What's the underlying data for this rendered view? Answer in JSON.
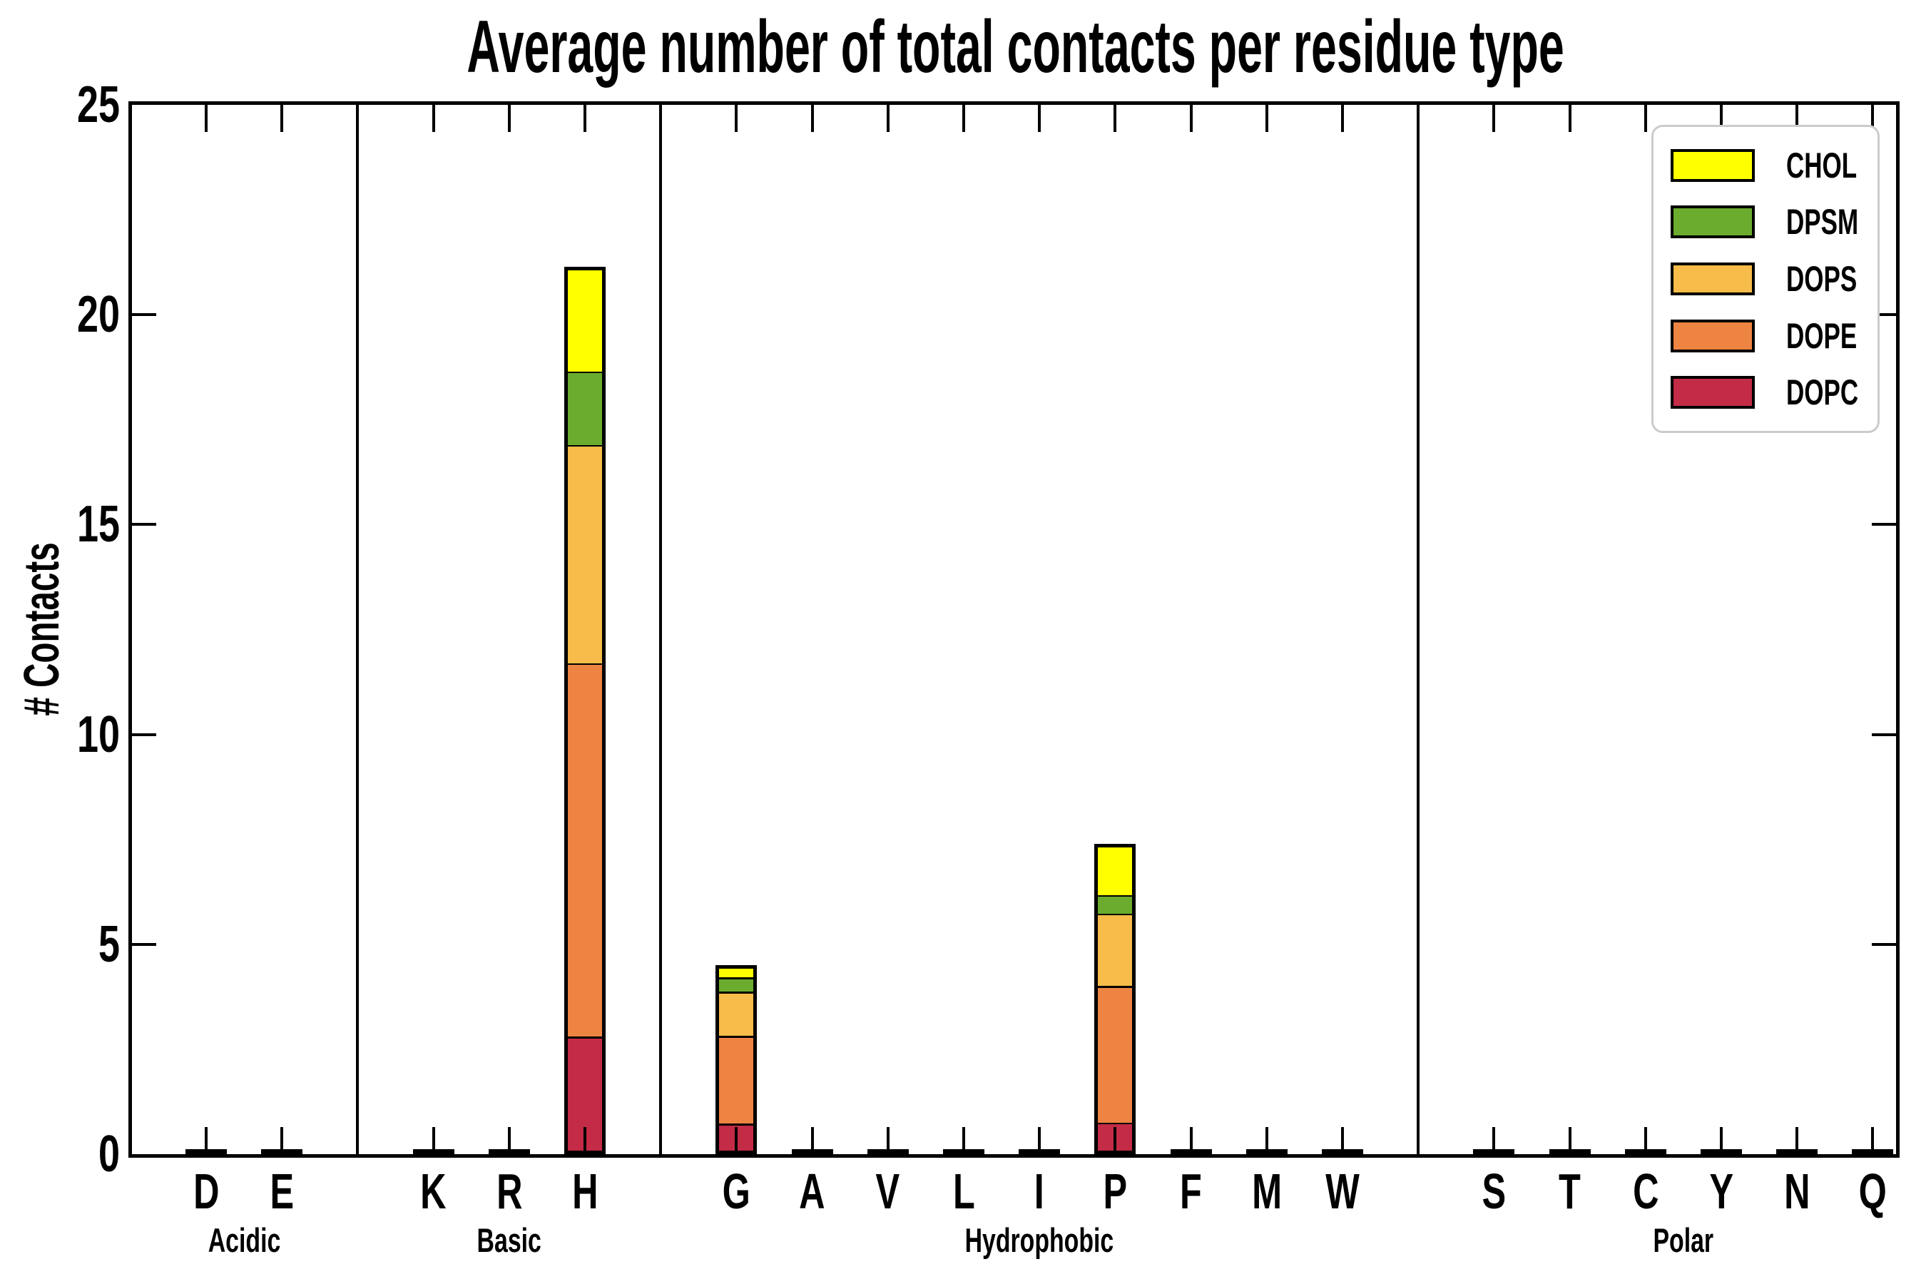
{
  "chart_data": {
    "type": "bar",
    "stacked": true,
    "title": "Average number of total contacts per residue type",
    "ylabel": "# Contacts",
    "xlabel": "",
    "ylim": [
      0,
      25
    ],
    "y_ticks": [
      0,
      5,
      10,
      15,
      20,
      25
    ],
    "grid": false,
    "legend_position": "upper right",
    "background_color": "#ffffff",
    "axis_color": "#000000",
    "bar_edge_color": "#000000",
    "legend_border_color": "#cbcbcb",
    "groups": [
      {
        "label": "Acidic",
        "residues": [
          "D",
          "E"
        ]
      },
      {
        "label": "Basic",
        "residues": [
          "K",
          "R",
          "H"
        ]
      },
      {
        "label": "Hydrophobic",
        "residues": [
          "G",
          "A",
          "V",
          "L",
          "I",
          "P",
          "F",
          "M",
          "W"
        ]
      },
      {
        "label": "Polar",
        "residues": [
          "S",
          "T",
          "C",
          "Y",
          "N",
          "Q"
        ]
      }
    ],
    "residues": [
      "D",
      "E",
      "K",
      "R",
      "H",
      "G",
      "A",
      "V",
      "L",
      "I",
      "P",
      "F",
      "M",
      "W",
      "S",
      "T",
      "C",
      "Y",
      "N",
      "Q"
    ],
    "series": [
      {
        "name": "DOPC",
        "color": "#c32b46",
        "values": [
          0,
          0,
          0,
          0,
          2.8,
          0.73,
          0,
          0,
          0,
          0,
          0.75,
          0,
          0,
          0,
          0,
          0,
          0,
          0,
          0,
          0
        ]
      },
      {
        "name": "DOPE",
        "color": "#ee8442",
        "values": [
          0,
          0,
          0,
          0,
          8.9,
          2.09,
          0,
          0,
          0,
          0,
          3.26,
          0,
          0,
          0,
          0,
          0,
          0,
          0,
          0,
          0
        ]
      },
      {
        "name": "DOPS",
        "color": "#f7bc49",
        "values": [
          0,
          0,
          0,
          0,
          5.2,
          1.05,
          0,
          0,
          0,
          0,
          1.72,
          0,
          0,
          0,
          0,
          0,
          0,
          0,
          0,
          0
        ]
      },
      {
        "name": "DPSM",
        "color": "#6bac2e",
        "values": [
          0,
          0,
          0,
          0,
          1.75,
          0.34,
          0,
          0,
          0,
          0,
          0.44,
          0,
          0,
          0,
          0,
          0,
          0,
          0,
          0,
          0
        ]
      },
      {
        "name": "CHOL",
        "color": "#ffff00",
        "values": [
          0,
          0,
          0,
          0,
          2.5,
          0.29,
          0,
          0,
          0,
          0,
          1.23,
          0,
          0,
          0,
          0,
          0,
          0,
          0,
          0,
          0
        ]
      }
    ],
    "legend_order": [
      "CHOL",
      "DPSM",
      "DOPS",
      "DOPE",
      "DOPC"
    ],
    "bar_totals": {
      "H": 21.15,
      "G": 4.5,
      "P": 7.4
    }
  }
}
